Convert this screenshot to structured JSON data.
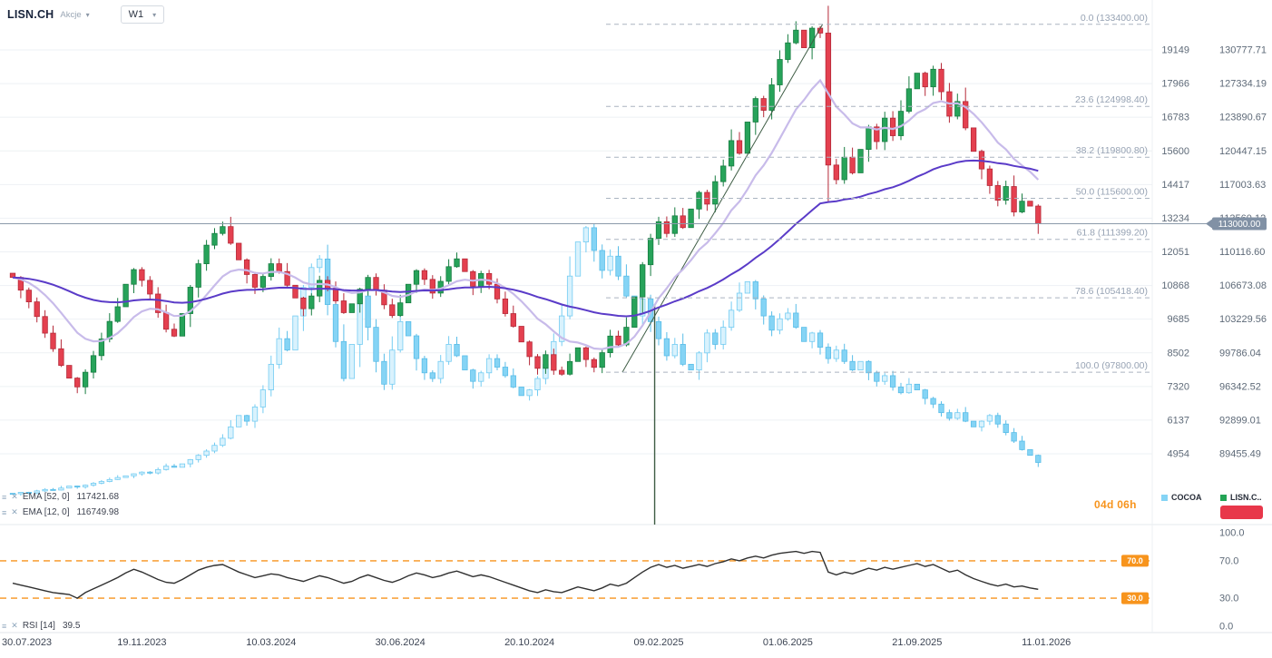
{
  "header": {
    "symbol": "LISN.CH",
    "instrument_type": "Akcje",
    "timeframe": "W1"
  },
  "price_axis": {
    "cocoa_ticks": [
      "19149",
      "17966",
      "16783",
      "15600",
      "14417",
      "13234",
      "12051",
      "10868",
      "9685",
      "8502",
      "7320",
      "6137",
      "4954"
    ],
    "lisn_ticks": [
      "130777.71",
      "127334.19",
      "123890.67",
      "120447.15",
      "117003.63",
      "113560.12",
      "110116.60",
      "106673.08",
      "103229.56",
      "99786.04",
      "96342.52",
      "92899.01",
      "89455.49"
    ],
    "current_price": "113000.00"
  },
  "time_axis": {
    "dates": [
      "30.07.2023",
      "19.11.2023",
      "10.03.2024",
      "30.06.2024",
      "20.10.2024",
      "09.02.2025",
      "01.06.2025",
      "21.09.2025",
      "11.01.2026"
    ]
  },
  "indicators": {
    "ema52_label": "EMA [52, 0]",
    "ema52_value": "117421.68",
    "ema12_label": "EMA [12, 0]",
    "ema12_value": "116749.98",
    "rsi_label": "RSI [14]",
    "rsi_value": "39.5"
  },
  "rsi_axis": {
    "ticks": [
      "100.0",
      "70.0",
      "30.0",
      "0.0"
    ],
    "tick_values": [
      100,
      70,
      30,
      0
    ],
    "level_labels": [
      "70.0",
      "30.0"
    ],
    "level_values": [
      70,
      30
    ]
  },
  "footer": {
    "countdown": "04d 06h"
  },
  "series_legend": [
    {
      "name": "COCOA",
      "color": "#85d4f5"
    },
    {
      "name": "LISN.C..",
      "color": "#23a455"
    }
  ],
  "colors": {
    "up": "#27a35a",
    "up_border": "#177d41",
    "down": "#e4404f",
    "down_border": "#b52938",
    "cocoa_up": "#d9f2fd",
    "cocoa_border": "#74ccf2",
    "cocoa_down": "#85d4f5",
    "cocoa_border2": "#59bde8",
    "ema12": "#c8bbea",
    "ema52": "#5a3bc8",
    "fib": "#aab4c0",
    "fib_text": "#97a3b4",
    "grid": "#eef1f4",
    "price_line": "#8b9aaa",
    "price_badge": "#8191a5",
    "orange": "#f7941d",
    "rsi": "#303030",
    "drawing": "#3f5d45",
    "accent_red": "#e8374a",
    "axis_text": "#5e6a78",
    "date_text": "#3c4453"
  },
  "chart_data": {
    "type": "candlestick",
    "interval": "W1",
    "x_start_date": "30.07.2023",
    "x_end_date": "11.01.2026",
    "x_tick_dates": [
      "30.07.2023",
      "19.11.2023",
      "10.03.2024",
      "30.06.2024",
      "20.10.2024",
      "09.02.2025",
      "01.06.2025",
      "21.09.2025",
      "11.01.2026"
    ],
    "right_axis_lisn_range": [
      89455.49,
      130777.71
    ],
    "right_axis_cocoa_range": [
      4954,
      19149
    ],
    "current_price": 113000.0,
    "series": [
      {
        "name": "LISN.CH",
        "type": "candlestick",
        "axis": "lisn",
        "weekly_closes": [
          107500,
          106200,
          105000,
          103500,
          101800,
          100200,
          98500,
          97200,
          96300,
          97800,
          99500,
          101200,
          103000,
          104500,
          106800,
          108300,
          107200,
          105800,
          103900,
          102200,
          101500,
          103800,
          106500,
          108900,
          110800,
          112000,
          112700,
          111000,
          109300,
          107800,
          106500,
          107600,
          108900,
          108100,
          106700,
          105400,
          104300,
          105600,
          107200,
          106400,
          105100,
          103900,
          104800,
          106300,
          107500,
          106200,
          104700,
          103600,
          104900,
          106800,
          108200,
          107300,
          105900,
          107100,
          108600,
          109400,
          108100,
          106600,
          107900,
          106800,
          105300,
          103800,
          102500,
          100900,
          99400,
          98200,
          99600,
          98000,
          97600,
          98900,
          100300,
          99100,
          98300,
          99800,
          101500,
          100600,
          102400,
          105500,
          108800,
          111500,
          113200,
          112000,
          113800,
          112600,
          114500,
          116200,
          115000,
          117300,
          118900,
          121500,
          120200,
          123400,
          125800,
          124600,
          127200,
          129800,
          131500,
          132800,
          131000,
          133000,
          132500,
          119000,
          117500,
          119800,
          118200,
          120600,
          122900,
          121400,
          123800,
          122000,
          124500,
          126800,
          128400,
          127000,
          128800,
          126500,
          124000,
          125500,
          122800,
          120400,
          118600,
          116900,
          115400,
          116800,
          114200,
          115300,
          114800,
          113000
        ]
      },
      {
        "name": "COCOA",
        "type": "candlestick",
        "axis": "cocoa",
        "weekly_closes": [
          3550,
          3600,
          3580,
          3650,
          3700,
          3680,
          3750,
          3820,
          3790,
          3850,
          3920,
          3980,
          4050,
          4120,
          4180,
          4250,
          4310,
          4280,
          4400,
          4520,
          4480,
          4600,
          4750,
          4900,
          5050,
          5250,
          5500,
          5900,
          6300,
          6100,
          6600,
          7200,
          8100,
          9000,
          8600,
          9800,
          10800,
          11500,
          11800,
          10200,
          8900,
          7600,
          8800,
          10500,
          9400,
          8200,
          7400,
          8600,
          9600,
          9100,
          8300,
          7800,
          7600,
          8200,
          8800,
          8400,
          7900,
          7500,
          7800,
          8300,
          8000,
          7700,
          7300,
          7000,
          7200,
          7600,
          8100,
          8900,
          9800,
          11200,
          12400,
          12900,
          12100,
          11400,
          11900,
          11200,
          10500,
          9800,
          10400,
          9600,
          9000,
          8400,
          8800,
          8100,
          7900,
          8500,
          9200,
          8800,
          9400,
          10000,
          10600,
          11000,
          10400,
          9800,
          9300,
          9700,
          9900,
          9400,
          8900,
          9200,
          8700,
          8300,
          8600,
          8200,
          7900,
          8200,
          7800,
          7500,
          7700,
          7300,
          7100,
          7400,
          7200,
          6900,
          6700,
          6400,
          6200,
          6400,
          6100,
          5900,
          6100,
          6300,
          6000,
          5700,
          5400,
          5100,
          4900,
          4650
        ]
      }
    ],
    "overlays": [
      {
        "name": "EMA",
        "params": [
          52,
          0
        ],
        "last_value": 117421.68
      },
      {
        "name": "EMA",
        "params": [
          12,
          0
        ],
        "last_value": 116749.98
      }
    ],
    "sub_chart": {
      "name": "RSI",
      "params": [
        14
      ],
      "last_value": 39.5,
      "range": [
        0,
        100
      ],
      "levels": [
        70,
        30
      ],
      "values": [
        46,
        44,
        42,
        40,
        38,
        36,
        35,
        34,
        30,
        36,
        40,
        44,
        48,
        52,
        57,
        61,
        58,
        54,
        50,
        47,
        46,
        50,
        55,
        60,
        63,
        65,
        66,
        62,
        58,
        55,
        52,
        54,
        56,
        55,
        52,
        50,
        48,
        51,
        54,
        52,
        49,
        46,
        48,
        52,
        55,
        52,
        49,
        47,
        50,
        54,
        57,
        55,
        52,
        54,
        57,
        59,
        56,
        53,
        55,
        53,
        50,
        47,
        44,
        41,
        38,
        36,
        39,
        37,
        36,
        39,
        42,
        40,
        38,
        41,
        45,
        43,
        46,
        52,
        58,
        63,
        66,
        63,
        65,
        62,
        64,
        66,
        64,
        67,
        69,
        72,
        70,
        73,
        75,
        73,
        76,
        78,
        79,
        80,
        78,
        80,
        79,
        58,
        55,
        58,
        56,
        59,
        62,
        60,
        63,
        61,
        63,
        65,
        67,
        64,
        66,
        62,
        58,
        60,
        55,
        51,
        48,
        45,
        43,
        45,
        42,
        43,
        41,
        39.5
      ]
    },
    "fibonacci_retracement": [
      {
        "label": "0.0 (133400.00)",
        "value": 133400.0
      },
      {
        "label": "23.6 (124998.40)",
        "value": 124998.4
      },
      {
        "label": "38.2 (119800.80)",
        "value": 119800.8
      },
      {
        "label": "50.0 (115600.00)",
        "value": 115600.0
      },
      {
        "label": "61.8 (111399.20)",
        "value": 111399.2
      },
      {
        "label": "78.6 (105418.40)",
        "value": 105418.4
      },
      {
        "label": "100.0 (97800.00)",
        "value": 97800.0
      }
    ],
    "drawings": {
      "vertical_line": {
        "week": 79.5
      },
      "trendline": {
        "from": {
          "week": 75.5,
          "price": 97800
        },
        "to": {
          "week": 100.3,
          "price": 133400
        }
      }
    }
  }
}
